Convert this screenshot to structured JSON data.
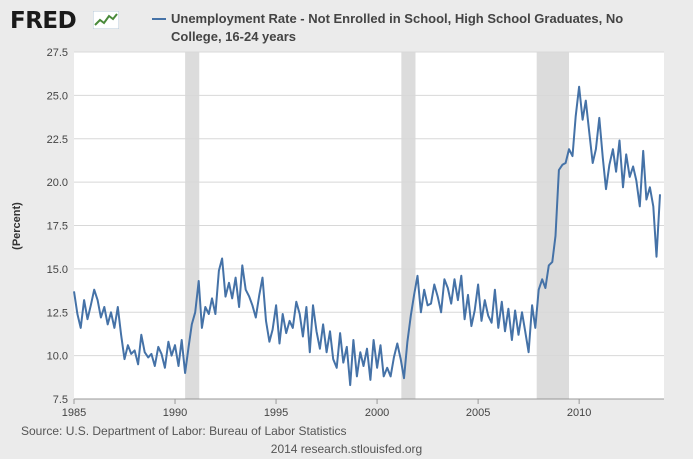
{
  "header": {
    "logo_text": "FRED",
    "legend_label": "Unemployment Rate - Not Enrolled in School, High School Graduates, No College, 16-24 years"
  },
  "footer": {
    "source": "Source: U.S. Department of Labor: Bureau of Labor Statistics",
    "credit": "2014 research.stlouisfed.org"
  },
  "colors": {
    "series": "#4572a7",
    "recession": "#dcdcdc",
    "background": "#ebebeb",
    "plot_background": "#ffffff"
  },
  "chart_data": {
    "type": "line",
    "title": "",
    "xlabel": "",
    "ylabel": "(Percent)",
    "xlim": [
      1985,
      2014.2
    ],
    "ylim": [
      7.5,
      27.5
    ],
    "xticks": [
      1985,
      1990,
      1995,
      2000,
      2005,
      2010
    ],
    "yticks": [
      7.5,
      10.0,
      12.5,
      15.0,
      17.5,
      20.0,
      22.5,
      25.0,
      27.5
    ],
    "grid": "horizontal",
    "recessions": [
      [
        1990.5,
        1991.2
      ],
      [
        2001.2,
        2001.9
      ],
      [
        2007.9,
        2009.5
      ]
    ],
    "series": [
      {
        "name": "Unemployment Rate - Not Enrolled in School, High School Graduates, No College, 16-24 years",
        "x": [
          1985.0,
          1985.17,
          1985.33,
          1985.5,
          1985.67,
          1985.83,
          1986.0,
          1986.17,
          1986.33,
          1986.5,
          1986.67,
          1986.83,
          1987.0,
          1987.17,
          1987.33,
          1987.5,
          1987.67,
          1987.83,
          1988.0,
          1988.17,
          1988.33,
          1988.5,
          1988.67,
          1988.83,
          1989.0,
          1989.17,
          1989.33,
          1989.5,
          1989.67,
          1989.83,
          1990.0,
          1990.17,
          1990.33,
          1990.5,
          1990.67,
          1990.83,
          1991.0,
          1991.17,
          1991.33,
          1991.5,
          1991.67,
          1991.83,
          1992.0,
          1992.17,
          1992.33,
          1992.5,
          1992.67,
          1992.83,
          1993.0,
          1993.17,
          1993.33,
          1993.5,
          1993.67,
          1993.83,
          1994.0,
          1994.17,
          1994.33,
          1994.5,
          1994.67,
          1994.83,
          1995.0,
          1995.17,
          1995.33,
          1995.5,
          1995.67,
          1995.83,
          1996.0,
          1996.17,
          1996.33,
          1996.5,
          1996.67,
          1996.83,
          1997.0,
          1997.17,
          1997.33,
          1997.5,
          1997.67,
          1997.83,
          1998.0,
          1998.17,
          1998.33,
          1998.5,
          1998.67,
          1998.83,
          1999.0,
          1999.17,
          1999.33,
          1999.5,
          1999.67,
          1999.83,
          2000.0,
          2000.17,
          2000.33,
          2000.5,
          2000.67,
          2000.83,
          2001.0,
          2001.17,
          2001.33,
          2001.5,
          2001.67,
          2001.83,
          2002.0,
          2002.17,
          2002.33,
          2002.5,
          2002.67,
          2002.83,
          2003.0,
          2003.17,
          2003.33,
          2003.5,
          2003.67,
          2003.83,
          2004.0,
          2004.17,
          2004.33,
          2004.5,
          2004.67,
          2004.83,
          2005.0,
          2005.17,
          2005.33,
          2005.5,
          2005.67,
          2005.83,
          2006.0,
          2006.17,
          2006.33,
          2006.5,
          2006.67,
          2006.83,
          2007.0,
          2007.17,
          2007.33,
          2007.5,
          2007.67,
          2007.83,
          2008.0,
          2008.17,
          2008.33,
          2008.5,
          2008.67,
          2008.83,
          2009.0,
          2009.17,
          2009.33,
          2009.5,
          2009.67,
          2009.83,
          2010.0,
          2010.17,
          2010.33,
          2010.5,
          2010.67,
          2010.83,
          2011.0,
          2011.17,
          2011.33,
          2011.5,
          2011.67,
          2011.83,
          2012.0,
          2012.17,
          2012.33,
          2012.5,
          2012.67,
          2012.83,
          2013.0,
          2013.17,
          2013.33,
          2013.5,
          2013.67,
          2013.83,
          2014.0
        ],
        "y": [
          13.7,
          12.4,
          11.6,
          13.2,
          12.1,
          12.9,
          13.8,
          13.2,
          12.2,
          12.8,
          11.8,
          12.5,
          11.6,
          12.8,
          11.2,
          9.8,
          10.6,
          10.1,
          10.3,
          9.5,
          11.2,
          10.2,
          9.9,
          10.1,
          9.4,
          10.5,
          10.1,
          9.3,
          10.8,
          10.0,
          10.6,
          9.4,
          10.9,
          9.0,
          10.5,
          11.8,
          12.5,
          14.3,
          11.6,
          12.8,
          12.4,
          13.3,
          12.4,
          14.9,
          15.6,
          13.4,
          14.2,
          13.3,
          14.5,
          12.8,
          15.2,
          13.8,
          13.4,
          12.9,
          12.2,
          13.5,
          14.5,
          12.0,
          10.8,
          11.5,
          12.9,
          10.7,
          12.4,
          11.3,
          12.0,
          11.6,
          13.1,
          12.4,
          11.1,
          12.8,
          10.2,
          12.9,
          11.4,
          10.4,
          11.8,
          10.2,
          11.4,
          9.8,
          9.3,
          11.3,
          9.6,
          10.5,
          8.3,
          10.9,
          8.8,
          10.2,
          9.4,
          10.4,
          8.6,
          10.9,
          9.3,
          10.6,
          8.8,
          9.3,
          8.8,
          9.9,
          10.7,
          9.8,
          8.7,
          10.8,
          12.3,
          13.5,
          14.6,
          12.5,
          13.8,
          12.9,
          13.0,
          14.1,
          13.4,
          12.5,
          14.4,
          13.9,
          13.0,
          14.4,
          13.2,
          14.6,
          12.1,
          13.5,
          11.7,
          12.6,
          14.1,
          12.0,
          13.2,
          12.3,
          11.9,
          13.8,
          11.6,
          13.1,
          11.4,
          12.7,
          10.9,
          12.6,
          11.2,
          12.5,
          11.4,
          10.2,
          12.9,
          11.6,
          13.8,
          14.4,
          13.9,
          15.2,
          15.4,
          16.9,
          20.7,
          21.0,
          21.1,
          21.9,
          21.5,
          23.8,
          25.5,
          23.6,
          24.7,
          22.9,
          21.1,
          21.9,
          23.7,
          21.4,
          19.6,
          21.0,
          21.9,
          20.6,
          22.4,
          19.7,
          21.6,
          20.3,
          20.9,
          20.1,
          18.6,
          21.8,
          19.0,
          19.7,
          18.6,
          15.7,
          19.3
        ]
      }
    ]
  }
}
